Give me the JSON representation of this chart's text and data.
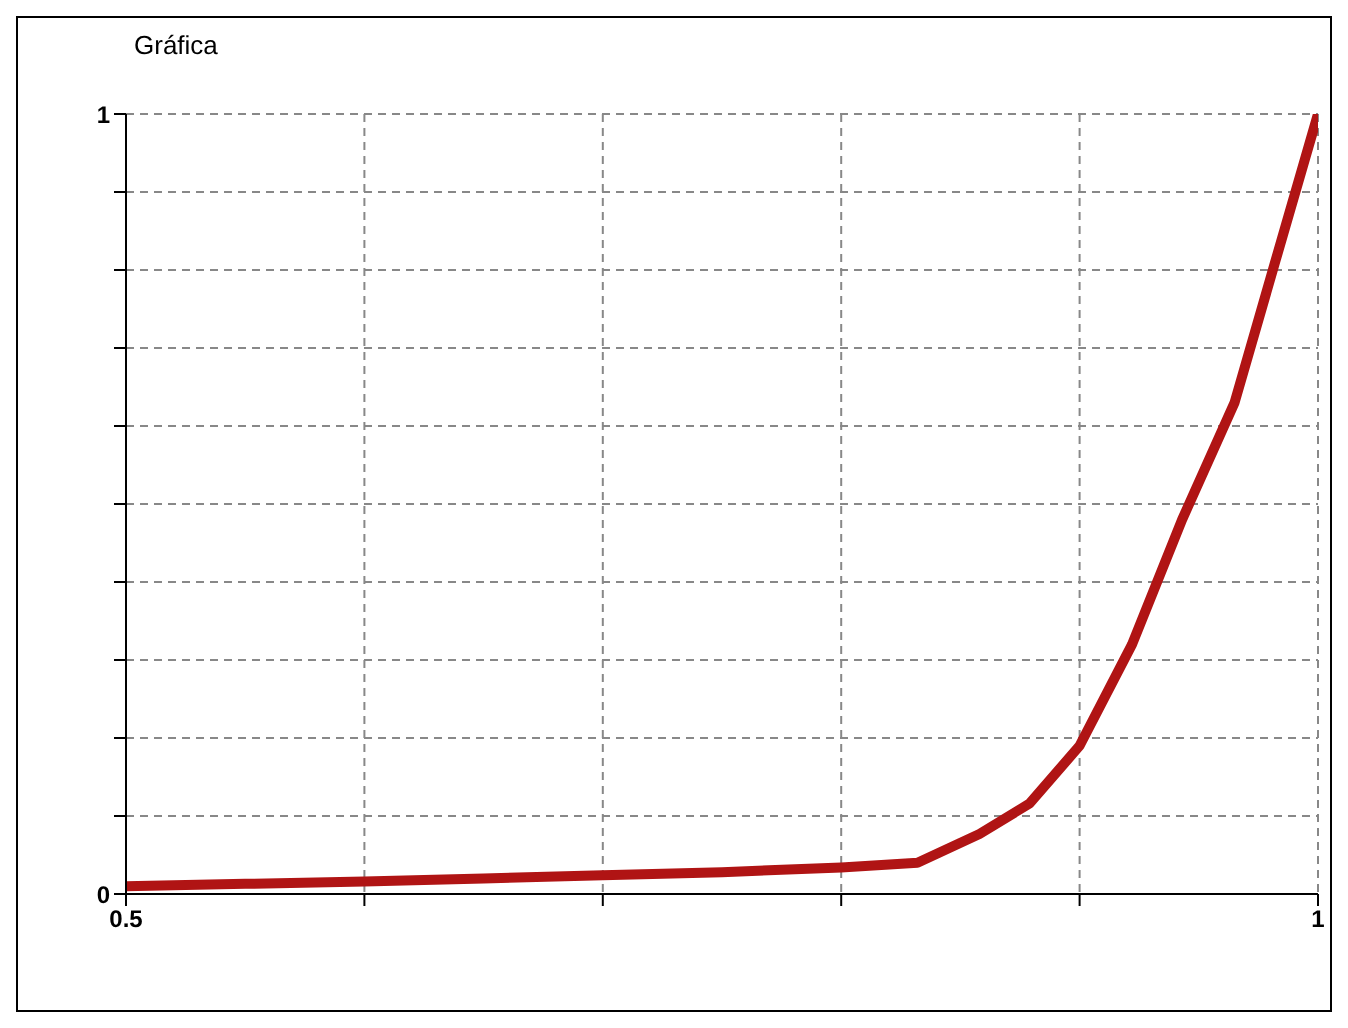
{
  "chart_data": {
    "type": "line",
    "title": "Gráfica",
    "x": [
      0.5,
      0.55,
      0.6,
      0.65,
      0.7,
      0.75,
      0.8,
      0.832,
      0.858,
      0.879,
      0.9,
      0.922,
      0.943,
      0.965,
      0.982,
      1
    ],
    "series": [
      {
        "color": "#b01414",
        "values": [
          0.01,
          0.013,
          0.016,
          0.02,
          0.024,
          0.028,
          0.034,
          0.04,
          0.077,
          0.116,
          0.19,
          0.32,
          0.48,
          0.63,
          0.81,
          1
        ]
      }
    ],
    "xlim": [
      0.5,
      1
    ],
    "xticks": [
      0.5,
      {
        "value": 0.6,
        "label": null
      },
      {
        "value": 0.7,
        "label": null
      },
      {
        "value": 0.8,
        "label": null
      },
      {
        "value": 0.9,
        "label": null
      },
      1
    ],
    "ylim": [
      0,
      1
    ],
    "yticks": [
      0,
      {
        "value": 0.1,
        "label": null
      },
      {
        "value": 0.2,
        "label": null
      },
      {
        "value": 0.3,
        "label": null
      },
      {
        "value": 0.4,
        "label": null
      },
      {
        "value": 0.5,
        "label": null
      },
      {
        "value": 0.6,
        "label": null
      },
      {
        "value": 0.7,
        "label": null
      },
      {
        "value": 0.8,
        "label": null
      },
      {
        "value": 0.9,
        "label": null
      },
      1
    ],
    "grid": true,
    "marker": "none",
    "line_style": "solid"
  }
}
